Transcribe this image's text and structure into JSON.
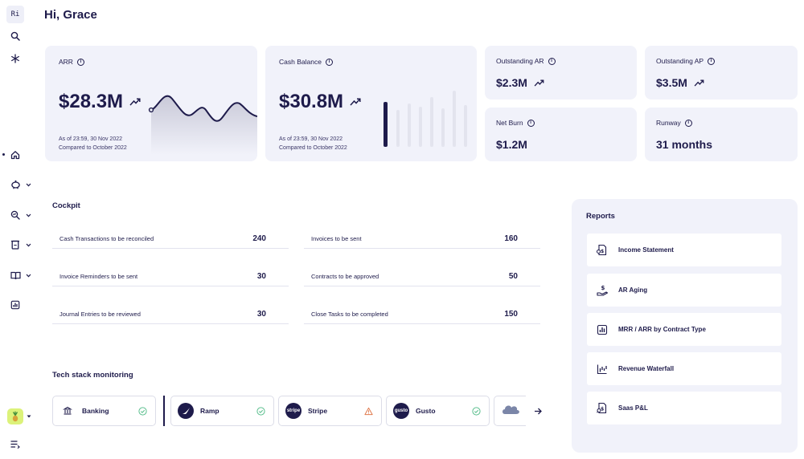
{
  "sidebar": {
    "logo_text": "Ri",
    "items": [
      {
        "name": "search",
        "icon": "search-icon"
      },
      {
        "name": "integrations",
        "icon": "snowflake-icon"
      },
      {
        "name": "home",
        "icon": "home-icon"
      },
      {
        "name": "cash",
        "icon": "piggy-bank-icon"
      },
      {
        "name": "analysis",
        "icon": "magnifier-chart-icon"
      },
      {
        "name": "billing",
        "icon": "receipt-icon"
      },
      {
        "name": "books",
        "icon": "book-icon"
      },
      {
        "name": "reports",
        "icon": "bar-chart-icon"
      },
      {
        "name": "tasks",
        "icon": "list-icon"
      }
    ],
    "org_icon": "pineapple-icon"
  },
  "greeting": "Hi, Grace",
  "kpis": {
    "arr": {
      "label": "ARR",
      "value": "$28.3M",
      "as_of": "As of 23:59, 30 Nov 2022",
      "compared": "Compared to October 2022"
    },
    "cash": {
      "label": "Cash Balance",
      "value": "$30.8M",
      "as_of": "As of 23:59, 30 Nov 2022",
      "compared": "Compared to October 2022"
    },
    "outstanding_ar": {
      "label": "Outstanding AR",
      "value": "$2.3M"
    },
    "outstanding_ap": {
      "label": "Outstanding AP",
      "value": "$3.5M"
    },
    "net_burn": {
      "label": "Net Burn",
      "value": "$1.2M"
    },
    "runway": {
      "label": "Runway",
      "value": "31 months"
    }
  },
  "cockpit": {
    "title": "Cockpit",
    "left": [
      {
        "label": "Cash Transactions to be reconciled",
        "value": "240"
      },
      {
        "label": "Invoice Reminders to be sent",
        "value": "30"
      },
      {
        "label": "Journal Entries to be reviewed",
        "value": "30"
      }
    ],
    "right": [
      {
        "label": "Invoices to be sent",
        "value": "160"
      },
      {
        "label": "Contracts to be approved",
        "value": "50"
      },
      {
        "label": "Close Tasks to be completed",
        "value": "150"
      }
    ]
  },
  "tech_stack": {
    "title": "Tech stack monitoring",
    "items": [
      {
        "name": "Banking",
        "logo": "bank-icon",
        "status": "ok"
      },
      {
        "name": "Ramp",
        "logo": "ramp-logo",
        "status": "ok"
      },
      {
        "name": "Stripe",
        "logo": "stripe",
        "status": "warning"
      },
      {
        "name": "Gusto",
        "logo": "gusto",
        "status": "ok"
      }
    ],
    "next_icon": "arrow-right-icon"
  },
  "reports": {
    "title": "Reports",
    "items": [
      {
        "label": "Income Statement",
        "icon": "income-statement-icon"
      },
      {
        "label": "AR Aging",
        "icon": "hand-dollar-icon"
      },
      {
        "label": "MRR / ARR by Contract Type",
        "icon": "bar-chart-icon"
      },
      {
        "label": "Revenue Waterfall",
        "icon": "waterfall-chart-icon"
      },
      {
        "label": "Saas P&L",
        "icon": "dollar-magnifier-icon"
      }
    ]
  },
  "colors": {
    "primary": "#1e1b4b",
    "card_bg": "#f1f2fa",
    "status_ok": "#5bbf8e",
    "status_warning": "#e07b4f",
    "org_avatar": "#dcf27a"
  }
}
